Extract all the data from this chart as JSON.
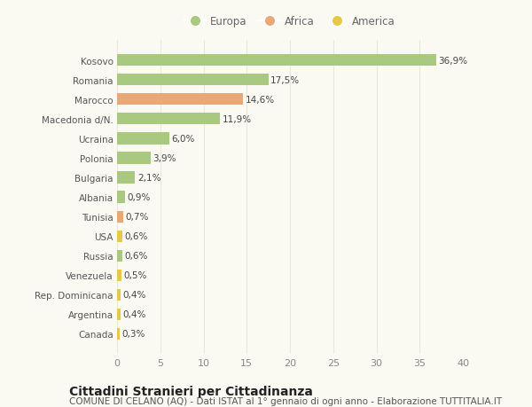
{
  "categories": [
    "Canada",
    "Argentina",
    "Rep. Dominicana",
    "Venezuela",
    "Russia",
    "USA",
    "Tunisia",
    "Albania",
    "Bulgaria",
    "Polonia",
    "Ucraina",
    "Macedonia d/N.",
    "Marocco",
    "Romania",
    "Kosovo"
  ],
  "values": [
    0.3,
    0.4,
    0.4,
    0.5,
    0.6,
    0.6,
    0.7,
    0.9,
    2.1,
    3.9,
    6.0,
    11.9,
    14.6,
    17.5,
    36.9
  ],
  "labels": [
    "0,3%",
    "0,4%",
    "0,4%",
    "0,5%",
    "0,6%",
    "0,6%",
    "0,7%",
    "0,9%",
    "2,1%",
    "3,9%",
    "6,0%",
    "11,9%",
    "14,6%",
    "17,5%",
    "36,9%"
  ],
  "colors": [
    "#e8c84a",
    "#e8c84a",
    "#e8c84a",
    "#e8c84a",
    "#a8c97f",
    "#e8c84a",
    "#e8a878",
    "#a8c97f",
    "#a8c97f",
    "#a8c97f",
    "#a8c97f",
    "#a8c97f",
    "#e8a878",
    "#a8c97f",
    "#a8c97f"
  ],
  "legend": [
    {
      "label": "Europa",
      "color": "#a8c97f"
    },
    {
      "label": "Africa",
      "color": "#e8a878"
    },
    {
      "label": "America",
      "color": "#e8c84a"
    }
  ],
  "xlim": [
    0,
    40
  ],
  "xticks": [
    0,
    5,
    10,
    15,
    20,
    25,
    30,
    35,
    40
  ],
  "title": "Cittadini Stranieri per Cittadinanza",
  "subtitle": "COMUNE DI CELANO (AQ) - Dati ISTAT al 1° gennaio di ogni anno - Elaborazione TUTTITALIA.IT",
  "background_color": "#fafaf2",
  "grid_color": "#e8e8dc",
  "bar_height": 0.6,
  "label_fontsize": 7.5,
  "ytick_fontsize": 7.5,
  "xtick_fontsize": 8,
  "title_fontsize": 10,
  "subtitle_fontsize": 7.5,
  "legend_fontsize": 8.5
}
